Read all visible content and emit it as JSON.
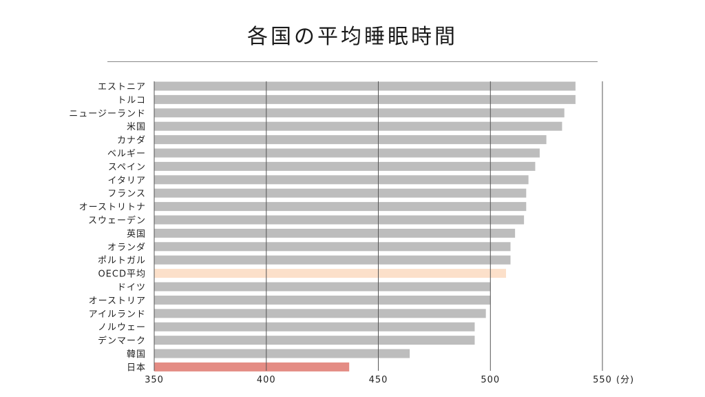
{
  "chart_data": {
    "type": "bar",
    "orientation": "horizontal",
    "title": "各国の平均睡眠時間",
    "xlabel": "",
    "unit": "(分)",
    "xlim": [
      350,
      550
    ],
    "xticks": [
      350,
      400,
      450,
      500,
      550
    ],
    "grid": true,
    "categories": [
      "エストニア",
      "トルコ",
      "ニュージーランド",
      "米国",
      "カナダ",
      "ベルギー",
      "スペイン",
      "イタリア",
      "フランス",
      "オーストリトナ",
      "スウェーデン",
      "英国",
      "オランダ",
      "ポルトガル",
      "OECD平均",
      "ドイツ",
      "オーストリア",
      "アイルランド",
      "ノルウェー",
      "デンマーク",
      "韓国",
      "日本"
    ],
    "values": [
      538,
      538,
      533,
      532,
      525,
      522,
      520,
      517,
      516,
      516,
      515,
      511,
      509,
      509,
      507,
      500,
      500,
      498,
      493,
      493,
      464,
      437
    ],
    "colors": {
      "default": "#bdbdbd",
      "highlight_oecd": "#fce0ca",
      "highlight_japan": "#e48c84"
    }
  }
}
